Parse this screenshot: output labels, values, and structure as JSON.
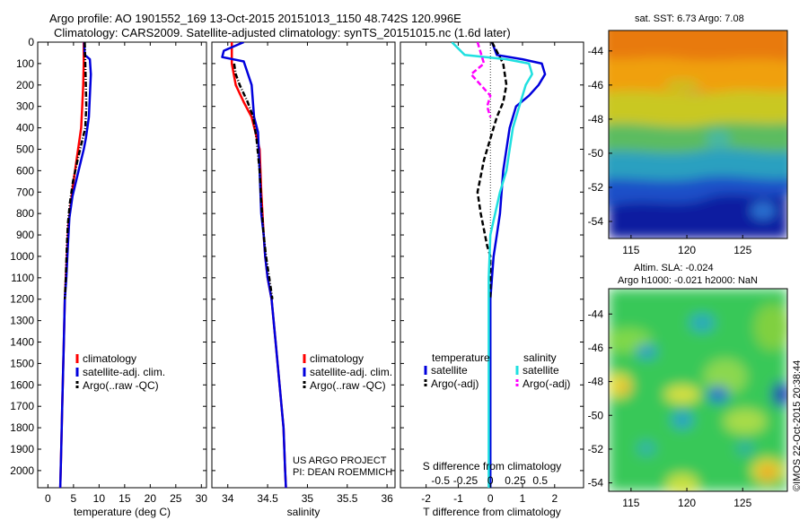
{
  "header": {
    "line1": "Argo profile: AO 1901552_169 13-Oct-2015 20151013_1150 48.742S 120.996E",
    "line2": "Climatology: CARS2009. Satellite-adjusted climatology: synTS_20151015.nc (1.6d later)"
  },
  "credit": {
    "project": "US ARGO PROJECT",
    "pi": "PI: DEAN ROEMMICH",
    "watermark": "©IMOS 22-Oct-2015 20:38:44"
  },
  "colors": {
    "climatology": "#ff0000",
    "satellite": "#0000dd",
    "argo": "#000000",
    "sal_satellite": "#20e0e0",
    "sal_argo": "#ff00ff"
  },
  "chart_data": [
    {
      "type": "line",
      "id": "temperature",
      "xlabel": "temperature (deg C)",
      "ylabel": "",
      "xlim": [
        -2,
        31
      ],
      "ylim": [
        2080,
        0
      ],
      "xticks": [
        0,
        5,
        10,
        15,
        20,
        25,
        30
      ],
      "yticks": [
        0,
        100,
        200,
        300,
        400,
        500,
        600,
        700,
        800,
        900,
        1000,
        1100,
        1200,
        1300,
        1400,
        1500,
        1600,
        1700,
        1800,
        1900,
        2000
      ],
      "legend": [
        "climatology",
        "satellite-adj. clim.",
        "Argo(..raw -QC)"
      ],
      "series": [
        {
          "name": "climatology",
          "color": "#ff0000",
          "style": "solid",
          "x": [
            7.0,
            7.0,
            6.9,
            6.7,
            6.5,
            6.2,
            5.6,
            5.0,
            4.5,
            4.0,
            3.8,
            3.5,
            3.3,
            3.1,
            3.0,
            2.8,
            2.6,
            2.5,
            2.4
          ],
          "y": [
            0,
            100,
            200,
            300,
            400,
            450,
            550,
            650,
            750,
            850,
            950,
            1100,
            1200,
            1400,
            1500,
            1700,
            1900,
            2000,
            2080
          ]
        },
        {
          "name": "satellite-adj. clim.",
          "color": "#0000dd",
          "style": "solid",
          "x": [
            7.1,
            7.2,
            8.2,
            8.4,
            8.2,
            8.0,
            7.7,
            7.4,
            7.0,
            6.5,
            5.8,
            4.8,
            4.2,
            3.9,
            3.6,
            3.3,
            3.1,
            3.0,
            2.8,
            2.6,
            2.5,
            2.4
          ],
          "y": [
            0,
            60,
            80,
            150,
            250,
            350,
            400,
            450,
            500,
            550,
            620,
            720,
            820,
            950,
            1100,
            1200,
            1400,
            1500,
            1700,
            1900,
            2000,
            2080
          ]
        },
        {
          "name": "Argo(..raw -QC)",
          "color": "#000000",
          "style": "dotdash",
          "x": [
            7.2,
            7.3,
            7.4,
            7.5,
            7.3,
            6.8,
            5.8,
            4.9,
            4.3,
            3.9,
            3.7,
            3.5,
            3.3
          ],
          "y": [
            0,
            100,
            200,
            300,
            400,
            450,
            550,
            650,
            750,
            850,
            950,
            1100,
            1200
          ]
        }
      ]
    },
    {
      "type": "line",
      "id": "salinity",
      "xlabel": "salinity",
      "ylabel": "",
      "xlim": [
        33.8,
        36.1
      ],
      "ylim": [
        2080,
        0
      ],
      "xticks": [
        34,
        34.5,
        35,
        35.5,
        36
      ],
      "xticklabels": [
        "34",
        "34.5",
        "35",
        "35.5",
        "36"
      ],
      "legend": [
        "climatology",
        "satellite-adj. clim.",
        "Argo(..raw -QC)"
      ],
      "series": [
        {
          "name": "climatology",
          "color": "#ff0000",
          "style": "solid",
          "x": [
            34.05,
            34.05,
            34.1,
            34.2,
            34.3,
            34.4,
            34.42,
            34.45,
            34.47,
            34.5,
            34.55,
            34.6,
            34.65,
            34.7,
            34.72,
            34.73
          ],
          "y": [
            0,
            100,
            200,
            280,
            350,
            500,
            700,
            900,
            1000,
            1100,
            1200,
            1400,
            1600,
            1800,
            2000,
            2080
          ]
        },
        {
          "name": "satellite-adj. clim.",
          "color": "#0000dd",
          "style": "solid",
          "x": [
            34.2,
            33.95,
            33.93,
            34.2,
            34.3,
            34.33,
            34.38,
            34.4,
            34.42,
            34.45,
            34.47,
            34.5,
            34.55,
            34.6,
            34.65,
            34.7,
            34.72,
            34.73
          ],
          "y": [
            0,
            40,
            70,
            90,
            200,
            350,
            420,
            600,
            800,
            900,
            1000,
            1100,
            1200,
            1400,
            1600,
            1800,
            2000,
            2080
          ]
        },
        {
          "name": "Argo(..raw -QC)",
          "color": "#000000",
          "style": "dotdash",
          "x": [
            34.08,
            34.1,
            34.15,
            34.25,
            34.32,
            34.36,
            34.4,
            34.42,
            34.45,
            34.48,
            34.52,
            34.56
          ],
          "y": [
            100,
            150,
            200,
            280,
            350,
            450,
            600,
            750,
            900,
            1000,
            1100,
            1200
          ]
        }
      ]
    },
    {
      "type": "line",
      "id": "difference",
      "xlabel": "T difference from climatology",
      "title_bottom": "S difference from climatology",
      "xlim": [
        -2.8,
        2.9
      ],
      "ylim": [
        2080,
        0
      ],
      "xticks": [
        -2,
        -1,
        0,
        1,
        2
      ],
      "xticklabels": [
        "-2",
        "-1",
        "0",
        "1",
        "2"
      ],
      "sticks": [
        -0.5,
        -0.25,
        0,
        0.25,
        0.5
      ],
      "sticklabels": [
        "-0.5",
        "-0.25",
        "0",
        "0.25",
        "0.5"
      ],
      "legend_t_title": "temperature",
      "legend_s_title": "salinity",
      "legend": [
        "satellite",
        "Argo(-adj)",
        "satellite",
        "Argo(-adj)"
      ],
      "series": [
        {
          "name": "T satellite",
          "color": "#0000dd",
          "style": "solid",
          "x": [
            0.05,
            0.2,
            1.0,
            1.6,
            1.7,
            1.5,
            1.2,
            0.8,
            0.6,
            0.5,
            0.4,
            0.3,
            0.2,
            0.1,
            0.0,
            0.0
          ],
          "y": [
            0,
            60,
            80,
            100,
            150,
            200,
            250,
            300,
            400,
            500,
            600,
            800,
            900,
            1000,
            1200,
            2080
          ]
        },
        {
          "name": "T Argo(-adj)",
          "color": "#000000",
          "style": "dash",
          "x": [
            0.05,
            0.4,
            0.5,
            0.4,
            0.2,
            0.0,
            -0.2,
            -0.4,
            -0.3,
            -0.1,
            0.0,
            0.0
          ],
          "y": [
            0,
            100,
            200,
            280,
            350,
            450,
            550,
            700,
            800,
            950,
            1000,
            1200
          ]
        },
        {
          "name": "S satellite",
          "color": "#20e0e0",
          "style": "solid",
          "x": [
            -1.2,
            -0.8,
            0.5,
            1.2,
            1.3,
            1.1,
            0.9,
            0.7,
            0.6,
            0.5,
            0.3,
            0.0,
            -0.05,
            -0.05
          ],
          "y": [
            0,
            60,
            80,
            100,
            150,
            200,
            300,
            400,
            500,
            600,
            700,
            900,
            1100,
            2080
          ]
        },
        {
          "name": "S Argo(-adj)",
          "color": "#ff00ff",
          "style": "dash",
          "x": [
            -0.4,
            -0.2,
            -0.6,
            -0.3,
            0.0,
            -0.1,
            0.0
          ],
          "y": [
            0,
            100,
            150,
            200,
            250,
            300,
            350
          ]
        }
      ]
    },
    {
      "type": "heatmap",
      "id": "sst-map",
      "title": "sat. SST: 6.73 Argo: 7.08",
      "xticks": [
        115,
        120,
        125
      ],
      "yticks": [
        -44,
        -46,
        -48,
        -50,
        -52,
        -54
      ],
      "xlim": [
        113,
        129
      ],
      "ylim": [
        -55,
        -42.8
      ]
    },
    {
      "type": "heatmap",
      "id": "sla-map",
      "title": "Altim. SLA: -0.024",
      "subtitle": "Argo h1000: -0.021 h2000: NaN",
      "xticks": [
        115,
        120,
        125
      ],
      "yticks": [
        -44,
        -46,
        -48,
        -50,
        -52,
        -54
      ],
      "xlim": [
        113,
        129
      ],
      "ylim": [
        -54.5,
        -42.5
      ]
    }
  ]
}
